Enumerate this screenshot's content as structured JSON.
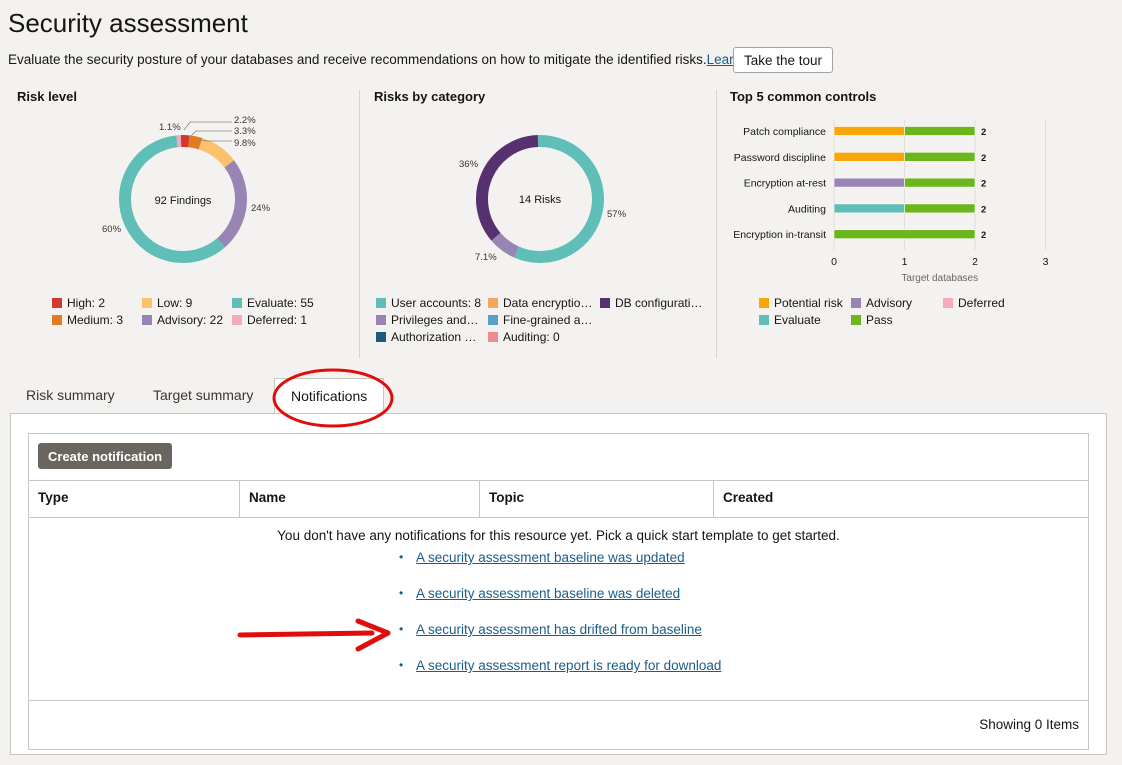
{
  "page": {
    "title": "Security assessment",
    "description": "Evaluate the security posture of your databases and receive recommendations on how to mitigate the identified risks.",
    "learn_more": "Learn more",
    "tour_button": "Take the tour"
  },
  "risk_level": {
    "title": "Risk level",
    "center_label": "92 Findings",
    "slice_labels": [
      "1.1%",
      "2.2%",
      "3.3%",
      "9.8%",
      "24%",
      "60%"
    ],
    "legend": [
      {
        "label": "High: 2",
        "color": "#d0392b"
      },
      {
        "label": "Low: 9",
        "color": "#fbc16b"
      },
      {
        "label": "Evaluate: 55",
        "color": "#5fbfb8"
      },
      {
        "label": "Medium: 3",
        "color": "#e07b20"
      },
      {
        "label": "Advisory: 22",
        "color": "#9985b4"
      },
      {
        "label": "Deferred: 1",
        "color": "#f3aab9"
      }
    ]
  },
  "risks_by_category": {
    "title": "Risks by category",
    "center_label": "14 Risks",
    "slice_labels": [
      "36%",
      "57%",
      "7.1%"
    ],
    "legend": [
      {
        "label": "User accounts: 8",
        "color": "#5fbfb8"
      },
      {
        "label": "Data encryptio…",
        "color": "#f5a55c"
      },
      {
        "label": "DB configurati…",
        "color": "#57306f"
      },
      {
        "label": "Privileges and…",
        "color": "#9985b4"
      },
      {
        "label": "Fine-grained a…",
        "color": "#5a9fc5"
      },
      {
        "label": "Authorization …",
        "color": "#1b5c7c"
      },
      {
        "label": "Auditing: 0",
        "color": "#ef8b8e"
      }
    ]
  },
  "top_controls": {
    "title": "Top 5 common controls",
    "legend": [
      {
        "label": "Potential risk",
        "color": "#f7a70b"
      },
      {
        "label": "Advisory",
        "color": "#9985b4"
      },
      {
        "label": "Deferred",
        "color": "#f3aab9"
      },
      {
        "label": "Evaluate",
        "color": "#5fbfb8"
      },
      {
        "label": "Pass",
        "color": "#6db51c"
      }
    ]
  },
  "chart_data": [
    {
      "type": "pie",
      "title": "Risk level",
      "center_text": "92 Findings",
      "slices": [
        {
          "name": "High",
          "value": 2,
          "color": "#d0392b"
        },
        {
          "name": "Medium",
          "value": 3,
          "color": "#e07b20"
        },
        {
          "name": "Low",
          "value": 9,
          "color": "#fbc16b"
        },
        {
          "name": "Advisory",
          "value": 22,
          "color": "#9985b4"
        },
        {
          "name": "Evaluate",
          "value": 55,
          "color": "#5fbfb8"
        },
        {
          "name": "Deferred",
          "value": 1,
          "color": "#f3aab9"
        }
      ]
    },
    {
      "type": "pie",
      "title": "Risks by category",
      "center_text": "14 Risks",
      "slices": [
        {
          "name": "User accounts",
          "value": 8,
          "color": "#5fbfb8"
        },
        {
          "name": "Privileges and…",
          "value": 1,
          "color": "#9985b4"
        },
        {
          "name": "DB configurati…",
          "value": 5,
          "color": "#57306f"
        }
      ]
    },
    {
      "type": "bar",
      "orientation": "horizontal",
      "stacked": true,
      "title": "Top 5 common controls",
      "categories": [
        "Patch compliance",
        "Password discipline",
        "Encryption at-rest",
        "Auditing",
        "Encryption in-transit"
      ],
      "series": [
        {
          "name": "Potential risk",
          "color": "#f7a70b",
          "values": [
            1,
            1,
            0,
            0,
            0
          ]
        },
        {
          "name": "Advisory",
          "color": "#9985b4",
          "values": [
            0,
            0,
            1,
            0,
            0
          ]
        },
        {
          "name": "Evaluate",
          "color": "#5fbfb8",
          "values": [
            0,
            0,
            0,
            1,
            0
          ]
        },
        {
          "name": "Pass",
          "color": "#6db51c",
          "values": [
            1,
            1,
            1,
            1,
            2
          ]
        }
      ],
      "data_labels": [
        "2",
        "2",
        "2",
        "2",
        "2"
      ],
      "xlabel": "Target databases",
      "xticks": [
        "0",
        "1",
        "2",
        "3"
      ],
      "xlim": [
        0,
        3
      ]
    }
  ],
  "tabs": [
    {
      "label": "Risk summary"
    },
    {
      "label": "Target summary"
    },
    {
      "label": "Notifications"
    }
  ],
  "notifications": {
    "create_button": "Create notification",
    "columns": [
      "Type",
      "Name",
      "Topic",
      "Created"
    ],
    "empty_message": "You don't have any notifications for this resource yet. Pick a quick start template to get started.",
    "quick_starts": [
      "A security assessment baseline was updated",
      "A security assessment baseline was deleted",
      "A security assessment has drifted from baseline",
      "A security assessment report is ready for download"
    ],
    "footer": "Showing 0 Items"
  }
}
